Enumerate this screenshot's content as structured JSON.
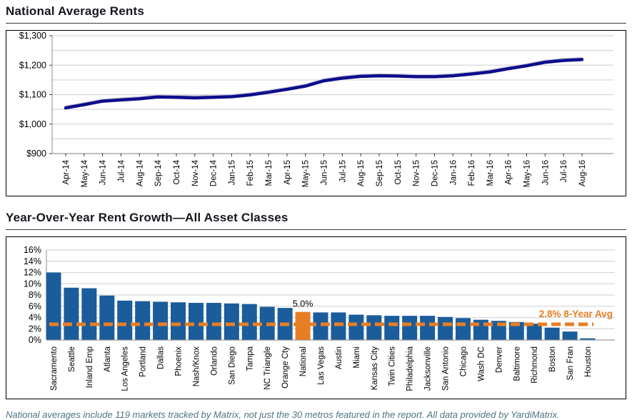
{
  "page": {
    "footer_note": "National averages include 119 markets tracked by Matrix, not just the 30 metros featured in the report. All data provided by YardiMatrix."
  },
  "colors": {
    "line_series": "#0d0d8c",
    "line_shadow": "#c9c9d8",
    "bar_fill": "#1b5c9b",
    "accent_orange": "#e87e24",
    "grid": "#d8d8d8",
    "axis": "#8c8c8c",
    "tick": "#333333",
    "text": "#000000"
  },
  "chart_data": [
    {
      "type": "line",
      "title": "National Average Rents",
      "x": [
        "Apr-14",
        "May-14",
        "Jun-14",
        "Jul-14",
        "Aug-14",
        "Sep-14",
        "Oct-14",
        "Nov-14",
        "Dec-14",
        "Jan-15",
        "Feb-15",
        "Mar-15",
        "Apr-15",
        "May-15",
        "Jun-15",
        "Jul-15",
        "Aug-15",
        "Sep-15",
        "Oct-15",
        "Nov-15",
        "Dec-15",
        "Jan-16",
        "Feb-16",
        "Mar-16",
        "Apr-16",
        "May-16",
        "Jun-16",
        "Jul-16",
        "Aug-16"
      ],
      "values": [
        1055,
        1066,
        1078,
        1082,
        1086,
        1092,
        1091,
        1089,
        1091,
        1093,
        1099,
        1108,
        1118,
        1129,
        1147,
        1156,
        1162,
        1164,
        1163,
        1161,
        1161,
        1164,
        1170,
        1177,
        1188,
        1198,
        1210,
        1216,
        1219
      ],
      "ylim": [
        900,
        1300
      ],
      "grid_step": 50,
      "yticks": [
        {
          "v": 900,
          "label": "$900"
        },
        {
          "v": 1000,
          "label": "$1,000"
        },
        {
          "v": 1100,
          "label": "$1,100"
        },
        {
          "v": 1200,
          "label": "$1,200"
        },
        {
          "v": 1300,
          "label": "$1,300"
        }
      ],
      "grid": true,
      "legend": "none"
    },
    {
      "type": "bar",
      "title": "Year-Over-Year Rent Growth—All Asset Classes",
      "categories": [
        "Sacramento",
        "Seattle",
        "Inland Emp",
        "Atlanta",
        "Los Angeles",
        "Portland",
        "Dallas",
        "Phoenix",
        "Nash/Knox",
        "Orlando",
        "San Diego",
        "Tampa",
        "NC Triangle",
        "Orange Cty",
        "National",
        "Las Vegas",
        "Austin",
        "Miami",
        "Kansas City",
        "Twin Cities",
        "Philadelphia",
        "Jacksonville",
        "San Antonio",
        "Chicago",
        "Wash DC",
        "Denver",
        "Baltimore",
        "Richmond",
        "Boston",
        "San Fran",
        "Houston"
      ],
      "values": [
        12.0,
        9.3,
        9.2,
        7.9,
        7.0,
        6.9,
        6.8,
        6.7,
        6.6,
        6.6,
        6.5,
        6.4,
        5.9,
        5.7,
        5.0,
        4.9,
        4.9,
        4.5,
        4.4,
        4.3,
        4.3,
        4.3,
        4.1,
        3.9,
        3.6,
        3.4,
        3.2,
        2.9,
        2.2,
        1.5,
        0.3
      ],
      "ylim": [
        0,
        16
      ],
      "ytick_step": 2,
      "ytick_suffix": "%",
      "highlight": {
        "category": "National",
        "index": 14,
        "label": "5.0%"
      },
      "reference_line": {
        "value": 2.8,
        "label": "2.8% 8-Year Avg"
      },
      "grid": true,
      "legend": "none"
    }
  ]
}
